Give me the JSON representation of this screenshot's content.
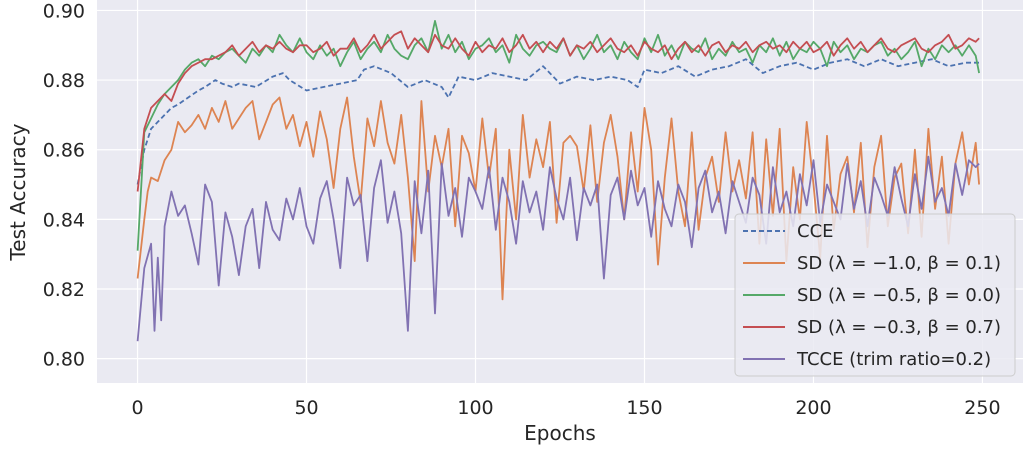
{
  "chart_data": {
    "type": "line",
    "xlabel": "Epochs",
    "ylabel": "Test Accuracy",
    "xlim": [
      -12,
      262
    ],
    "ylim": [
      0.793,
      0.903
    ],
    "xticks": [
      0,
      50,
      100,
      150,
      200,
      250
    ],
    "xtick_labels": [
      "0",
      "50",
      "100",
      "150",
      "200",
      "250"
    ],
    "yticks": [
      0.8,
      0.82,
      0.84,
      0.86,
      0.88,
      0.9
    ],
    "ytick_labels": [
      "0.80",
      "0.82",
      "0.84",
      "0.86",
      "0.88",
      "0.90"
    ],
    "grid": true,
    "legend_position": "lower-right",
    "series": [
      {
        "name": "CCE",
        "label": "CCE",
        "color": "#4c72b0",
        "dashed": true,
        "x": [
          0,
          2,
          4,
          6,
          8,
          10,
          12,
          15,
          18,
          20,
          23,
          25,
          28,
          30,
          35,
          40,
          43,
          45,
          50,
          55,
          60,
          65,
          67,
          70,
          75,
          80,
          85,
          90,
          92,
          95,
          100,
          105,
          110,
          115,
          120,
          125,
          130,
          135,
          140,
          145,
          148,
          150,
          155,
          160,
          165,
          170,
          175,
          180,
          185,
          190,
          195,
          200,
          205,
          210,
          215,
          220,
          225,
          230,
          235,
          240,
          245,
          249
        ],
        "values": [
          0.85,
          0.86,
          0.866,
          0.868,
          0.87,
          0.872,
          0.873,
          0.875,
          0.877,
          0.878,
          0.88,
          0.879,
          0.878,
          0.879,
          0.878,
          0.881,
          0.882,
          0.88,
          0.877,
          0.878,
          0.879,
          0.88,
          0.883,
          0.884,
          0.882,
          0.878,
          0.88,
          0.878,
          0.875,
          0.881,
          0.88,
          0.882,
          0.881,
          0.88,
          0.884,
          0.879,
          0.881,
          0.88,
          0.881,
          0.88,
          0.878,
          0.883,
          0.882,
          0.884,
          0.881,
          0.883,
          0.884,
          0.886,
          0.882,
          0.884,
          0.885,
          0.883,
          0.885,
          0.886,
          0.884,
          0.886,
          0.884,
          0.885,
          0.886,
          0.884,
          0.885,
          0.885
        ]
      },
      {
        "name": "SD1",
        "label": "SD (λ = −1.0, β = 0.1)",
        "color": "#dd8452",
        "dashed": false,
        "x": [
          0,
          2,
          3,
          4,
          6,
          8,
          10,
          12,
          14,
          16,
          18,
          20,
          22,
          24,
          26,
          28,
          30,
          32,
          34,
          36,
          38,
          40,
          42,
          44,
          46,
          48,
          50,
          52,
          54,
          56,
          58,
          60,
          62,
          64,
          66,
          68,
          70,
          72,
          74,
          76,
          78,
          80,
          82,
          84,
          86,
          88,
          90,
          92,
          94,
          96,
          98,
          100,
          102,
          104,
          106,
          108,
          110,
          112,
          114,
          116,
          118,
          120,
          122,
          124,
          126,
          128,
          130,
          132,
          134,
          136,
          138,
          140,
          142,
          144,
          146,
          148,
          150,
          152,
          154,
          156,
          158,
          160,
          162,
          164,
          166,
          168,
          170,
          172,
          174,
          176,
          178,
          180,
          182,
          184,
          186,
          188,
          190,
          192,
          194,
          196,
          198,
          200,
          202,
          204,
          206,
          208,
          210,
          212,
          214,
          216,
          218,
          220,
          222,
          224,
          226,
          228,
          230,
          232,
          234,
          236,
          238,
          240,
          242,
          244,
          246,
          248,
          249
        ],
        "values": [
          0.823,
          0.84,
          0.848,
          0.852,
          0.851,
          0.857,
          0.86,
          0.868,
          0.865,
          0.867,
          0.87,
          0.866,
          0.872,
          0.868,
          0.874,
          0.866,
          0.869,
          0.872,
          0.874,
          0.863,
          0.868,
          0.873,
          0.875,
          0.866,
          0.87,
          0.861,
          0.868,
          0.858,
          0.871,
          0.863,
          0.849,
          0.866,
          0.875,
          0.858,
          0.845,
          0.869,
          0.861,
          0.874,
          0.862,
          0.856,
          0.87,
          0.852,
          0.828,
          0.874,
          0.848,
          0.864,
          0.855,
          0.866,
          0.838,
          0.864,
          0.859,
          0.848,
          0.869,
          0.852,
          0.866,
          0.817,
          0.86,
          0.84,
          0.87,
          0.852,
          0.863,
          0.855,
          0.868,
          0.839,
          0.862,
          0.864,
          0.861,
          0.848,
          0.867,
          0.845,
          0.862,
          0.87,
          0.858,
          0.84,
          0.865,
          0.848,
          0.872,
          0.86,
          0.827,
          0.852,
          0.869,
          0.848,
          0.838,
          0.865,
          0.837,
          0.852,
          0.858,
          0.845,
          0.865,
          0.848,
          0.857,
          0.846,
          0.865,
          0.833,
          0.863,
          0.841,
          0.866,
          0.828,
          0.855,
          0.84,
          0.868,
          0.85,
          0.829,
          0.864,
          0.837,
          0.853,
          0.858,
          0.842,
          0.862,
          0.832,
          0.855,
          0.864,
          0.838,
          0.852,
          0.856,
          0.836,
          0.86,
          0.835,
          0.866,
          0.843,
          0.858,
          0.833,
          0.856,
          0.865,
          0.85,
          0.862,
          0.85
        ]
      },
      {
        "name": "SD2",
        "label": "SD (λ = −0.5, β = 0.0)",
        "color": "#55a868",
        "dashed": false,
        "x": [
          0,
          2,
          4,
          6,
          8,
          10,
          12,
          14,
          16,
          18,
          20,
          22,
          24,
          26,
          28,
          30,
          32,
          34,
          36,
          38,
          40,
          42,
          44,
          46,
          48,
          50,
          52,
          54,
          56,
          58,
          60,
          62,
          64,
          66,
          68,
          70,
          72,
          74,
          76,
          78,
          80,
          82,
          84,
          86,
          88,
          90,
          92,
          94,
          96,
          98,
          100,
          102,
          104,
          106,
          108,
          110,
          112,
          114,
          116,
          118,
          120,
          122,
          124,
          126,
          128,
          130,
          132,
          134,
          136,
          138,
          140,
          142,
          144,
          146,
          148,
          150,
          152,
          154,
          156,
          158,
          160,
          162,
          164,
          166,
          168,
          170,
          172,
          174,
          176,
          178,
          180,
          182,
          184,
          186,
          188,
          190,
          192,
          194,
          196,
          198,
          200,
          202,
          204,
          206,
          208,
          210,
          212,
          214,
          216,
          218,
          220,
          222,
          224,
          226,
          228,
          230,
          232,
          234,
          236,
          238,
          240,
          242,
          244,
          246,
          248,
          249
        ],
        "values": [
          0.831,
          0.865,
          0.869,
          0.873,
          0.876,
          0.878,
          0.88,
          0.883,
          0.885,
          0.886,
          0.884,
          0.887,
          0.886,
          0.888,
          0.889,
          0.887,
          0.885,
          0.889,
          0.887,
          0.89,
          0.888,
          0.893,
          0.89,
          0.888,
          0.892,
          0.888,
          0.886,
          0.89,
          0.887,
          0.889,
          0.884,
          0.888,
          0.891,
          0.886,
          0.889,
          0.891,
          0.888,
          0.893,
          0.889,
          0.887,
          0.886,
          0.89,
          0.892,
          0.888,
          0.897,
          0.889,
          0.893,
          0.888,
          0.891,
          0.886,
          0.889,
          0.89,
          0.892,
          0.888,
          0.89,
          0.885,
          0.893,
          0.889,
          0.887,
          0.89,
          0.891,
          0.889,
          0.888,
          0.892,
          0.887,
          0.89,
          0.886,
          0.889,
          0.893,
          0.888,
          0.89,
          0.886,
          0.891,
          0.888,
          0.886,
          0.892,
          0.888,
          0.893,
          0.887,
          0.89,
          0.886,
          0.891,
          0.889,
          0.888,
          0.892,
          0.886,
          0.889,
          0.887,
          0.891,
          0.888,
          0.889,
          0.885,
          0.89,
          0.888,
          0.892,
          0.887,
          0.891,
          0.886,
          0.889,
          0.888,
          0.891,
          0.889,
          0.884,
          0.891,
          0.888,
          0.89,
          0.886,
          0.889,
          0.888,
          0.89,
          0.891,
          0.887,
          0.889,
          0.886,
          0.888,
          0.891,
          0.884,
          0.889,
          0.886,
          0.89,
          0.888,
          0.89,
          0.887,
          0.89,
          0.887,
          0.882
        ]
      },
      {
        "name": "SD3",
        "label": "SD (λ = −0.3, β = 0.7)",
        "color": "#c44e52",
        "dashed": false,
        "x": [
          0,
          2,
          4,
          6,
          8,
          10,
          12,
          14,
          16,
          18,
          20,
          22,
          24,
          26,
          28,
          30,
          32,
          34,
          36,
          38,
          40,
          42,
          44,
          46,
          48,
          50,
          52,
          54,
          56,
          58,
          60,
          62,
          64,
          66,
          68,
          70,
          72,
          74,
          76,
          78,
          80,
          82,
          84,
          86,
          88,
          90,
          92,
          94,
          96,
          98,
          100,
          102,
          104,
          106,
          108,
          110,
          112,
          114,
          116,
          118,
          120,
          122,
          124,
          126,
          128,
          130,
          132,
          134,
          136,
          138,
          140,
          142,
          144,
          146,
          148,
          150,
          152,
          154,
          156,
          158,
          160,
          162,
          164,
          166,
          168,
          170,
          172,
          174,
          176,
          178,
          180,
          182,
          184,
          186,
          188,
          190,
          192,
          194,
          196,
          198,
          200,
          202,
          204,
          206,
          208,
          210,
          212,
          214,
          216,
          218,
          220,
          222,
          224,
          226,
          228,
          230,
          232,
          234,
          236,
          238,
          240,
          242,
          244,
          246,
          248,
          249
        ],
        "values": [
          0.848,
          0.866,
          0.872,
          0.874,
          0.876,
          0.874,
          0.879,
          0.882,
          0.884,
          0.885,
          0.886,
          0.886,
          0.887,
          0.888,
          0.89,
          0.887,
          0.889,
          0.891,
          0.888,
          0.89,
          0.889,
          0.891,
          0.889,
          0.888,
          0.89,
          0.89,
          0.888,
          0.889,
          0.891,
          0.887,
          0.889,
          0.889,
          0.892,
          0.888,
          0.89,
          0.893,
          0.889,
          0.891,
          0.893,
          0.894,
          0.889,
          0.892,
          0.89,
          0.888,
          0.893,
          0.89,
          0.889,
          0.892,
          0.889,
          0.887,
          0.891,
          0.888,
          0.89,
          0.889,
          0.892,
          0.888,
          0.89,
          0.893,
          0.889,
          0.891,
          0.888,
          0.891,
          0.889,
          0.892,
          0.887,
          0.89,
          0.889,
          0.891,
          0.888,
          0.89,
          0.892,
          0.889,
          0.888,
          0.89,
          0.887,
          0.891,
          0.889,
          0.888,
          0.89,
          0.886,
          0.889,
          0.891,
          0.888,
          0.89,
          0.887,
          0.89,
          0.891,
          0.888,
          0.89,
          0.889,
          0.891,
          0.888,
          0.89,
          0.891,
          0.889,
          0.89,
          0.888,
          0.891,
          0.889,
          0.891,
          0.888,
          0.889,
          0.891,
          0.887,
          0.89,
          0.892,
          0.889,
          0.891,
          0.888,
          0.89,
          0.892,
          0.889,
          0.888,
          0.89,
          0.891,
          0.892,
          0.889,
          0.888,
          0.89,
          0.891,
          0.893,
          0.889,
          0.89,
          0.892,
          0.891,
          0.892
        ]
      },
      {
        "name": "TCCE",
        "label": "TCCE (trim ratio=0.2)",
        "color": "#8172b2",
        "dashed": false,
        "x": [
          0,
          2,
          4,
          5,
          6,
          7,
          8,
          10,
          12,
          14,
          16,
          18,
          20,
          22,
          24,
          26,
          28,
          30,
          32,
          34,
          36,
          38,
          40,
          42,
          44,
          46,
          48,
          50,
          52,
          54,
          56,
          58,
          60,
          62,
          64,
          66,
          68,
          70,
          72,
          74,
          76,
          78,
          80,
          82,
          84,
          86,
          88,
          90,
          92,
          94,
          96,
          98,
          100,
          102,
          104,
          106,
          108,
          110,
          112,
          114,
          116,
          118,
          120,
          122,
          124,
          126,
          128,
          130,
          132,
          134,
          136,
          138,
          140,
          142,
          144,
          146,
          148,
          150,
          152,
          154,
          156,
          158,
          160,
          162,
          164,
          166,
          168,
          170,
          172,
          174,
          176,
          178,
          180,
          182,
          184,
          186,
          188,
          190,
          192,
          194,
          196,
          198,
          200,
          202,
          204,
          206,
          208,
          210,
          212,
          214,
          216,
          218,
          220,
          222,
          224,
          226,
          228,
          230,
          232,
          234,
          236,
          238,
          240,
          242,
          244,
          246,
          248,
          249
        ],
        "values": [
          0.805,
          0.826,
          0.833,
          0.808,
          0.829,
          0.811,
          0.838,
          0.848,
          0.841,
          0.844,
          0.836,
          0.827,
          0.85,
          0.845,
          0.821,
          0.842,
          0.835,
          0.824,
          0.838,
          0.843,
          0.826,
          0.845,
          0.837,
          0.834,
          0.846,
          0.84,
          0.849,
          0.838,
          0.833,
          0.846,
          0.851,
          0.84,
          0.826,
          0.852,
          0.844,
          0.847,
          0.828,
          0.849,
          0.857,
          0.839,
          0.848,
          0.836,
          0.808,
          0.851,
          0.836,
          0.854,
          0.813,
          0.856,
          0.841,
          0.849,
          0.835,
          0.852,
          0.848,
          0.843,
          0.855,
          0.837,
          0.852,
          0.845,
          0.833,
          0.851,
          0.842,
          0.848,
          0.837,
          0.855,
          0.846,
          0.84,
          0.852,
          0.834,
          0.849,
          0.844,
          0.85,
          0.823,
          0.847,
          0.852,
          0.84,
          0.854,
          0.844,
          0.849,
          0.835,
          0.851,
          0.843,
          0.838,
          0.85,
          0.845,
          0.832,
          0.849,
          0.854,
          0.842,
          0.848,
          0.836,
          0.851,
          0.845,
          0.839,
          0.852,
          0.847,
          0.833,
          0.855,
          0.842,
          0.848,
          0.838,
          0.853,
          0.844,
          0.857,
          0.839,
          0.85,
          0.845,
          0.84,
          0.856,
          0.843,
          0.851,
          0.838,
          0.852,
          0.847,
          0.841,
          0.855,
          0.846,
          0.838,
          0.853,
          0.843,
          0.858,
          0.845,
          0.849,
          0.841,
          0.856,
          0.847,
          0.857,
          0.855,
          0.856
        ]
      }
    ]
  }
}
